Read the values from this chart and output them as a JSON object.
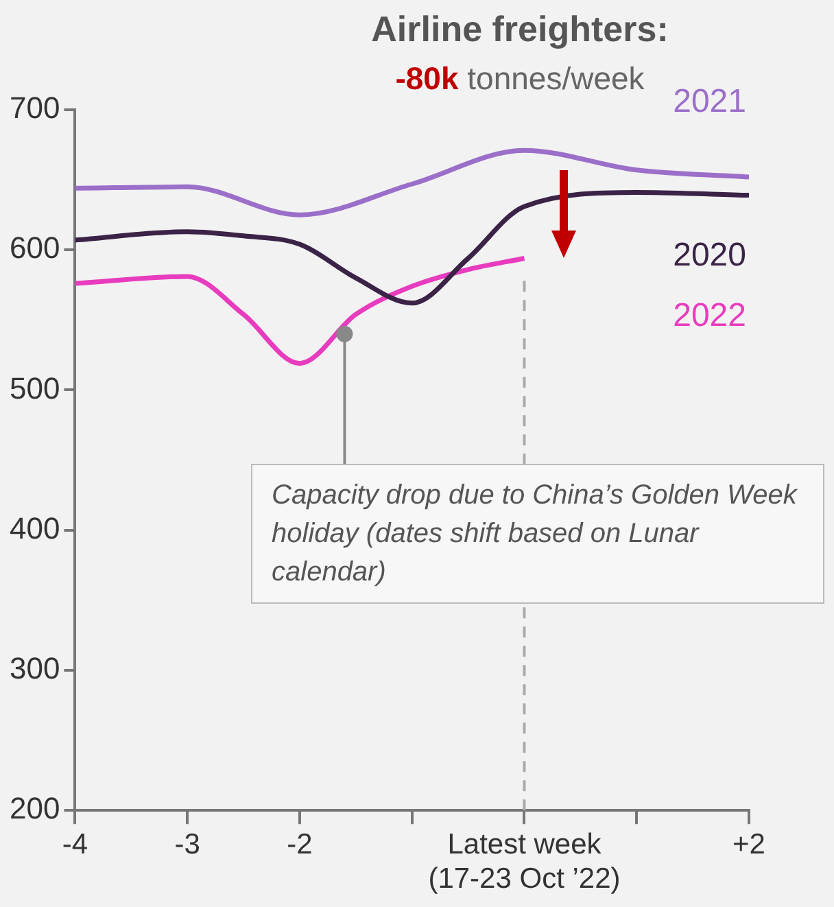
{
  "chart_data": {
    "type": "line",
    "title": "Airline freighters:",
    "subtitle": "-80k tonnes/week",
    "series": [
      {
        "name": "2021",
        "color": "#9b6fc9",
        "x": [
          -4,
          -3,
          -2,
          -1,
          0,
          1,
          2
        ],
        "values": [
          644,
          645,
          625,
          647,
          671,
          657,
          652
        ]
      },
      {
        "name": "2020",
        "color": "#3a2346",
        "x": [
          -4,
          -3,
          -2.5,
          -2,
          -1.5,
          -1,
          -0.5,
          0,
          1,
          2
        ],
        "values": [
          607,
          613,
          610,
          604,
          580,
          562,
          594,
          631,
          641,
          639
        ]
      },
      {
        "name": "2022",
        "color": "#e83cbf",
        "x": [
          -4,
          -3,
          -2.5,
          -2,
          -1.5,
          -1,
          -0.5,
          0
        ],
        "values": [
          576,
          581,
          554,
          519,
          554,
          574,
          586,
          594
        ]
      }
    ],
    "xlim": [
      -4,
      2
    ],
    "xticks": [
      -4,
      -3,
      -2,
      {
        "value": -1,
        "label": null
      },
      {
        "value": 0,
        "label": "Latest week\n(17-23 Oct ’22)"
      },
      {
        "value": 1,
        "label": null
      },
      {
        "value": 2,
        "label": "+2"
      }
    ],
    "ylim": [
      200,
      700
    ],
    "yticks": [
      200,
      300,
      400,
      500,
      600,
      700
    ],
    "ref_lines": [
      {
        "axis": "x",
        "value": 0,
        "color": "#aaaaaa",
        "line_style": "dashed"
      }
    ],
    "annotations": [
      {
        "text": "Capacity drop due to China’s Golden Week holiday (dates shift based on Lunar calendar)",
        "x": -1.6,
        "y": 540
      }
    ],
    "grid": false,
    "legend": false,
    "marker": "none",
    "line_style": "solid"
  }
}
